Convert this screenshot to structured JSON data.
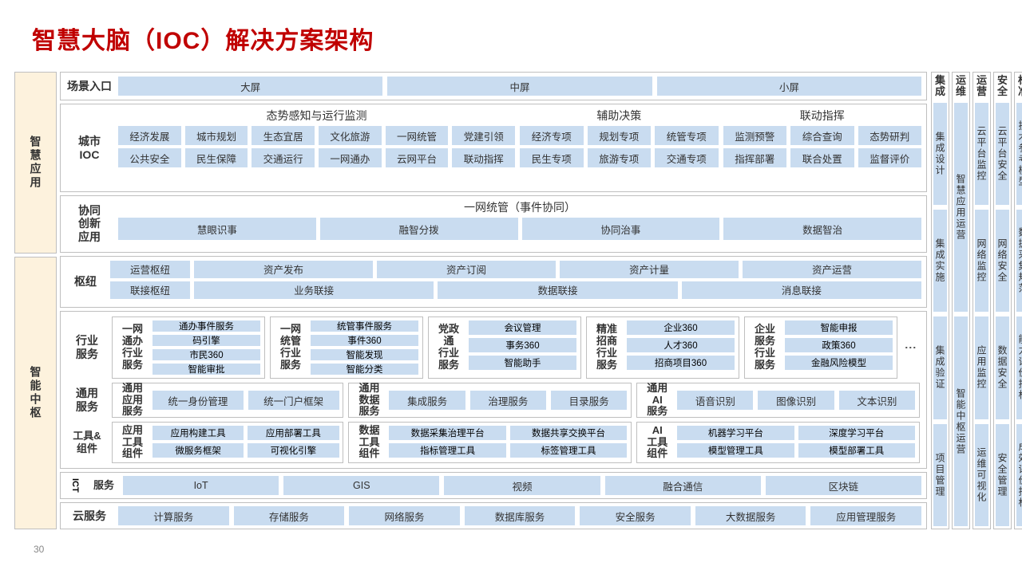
{
  "header": {
    "title": "智慧大脑（IOC）解决方案架构",
    "page": "30"
  },
  "colors": {
    "title": "#c00000",
    "chip_bg": "#c9dcf0",
    "panel_border": "#bfbfbf",
    "left_bg": "#fdf2dd",
    "text": "#333333",
    "page_bg": "#ffffff"
  },
  "left": {
    "app": "智慧应用",
    "center": "智能中枢"
  },
  "scene_entry": {
    "label": "场景入口",
    "items": [
      "大屏",
      "中屏",
      "小屏"
    ]
  },
  "city_ioc": {
    "label": "城市\nIOC",
    "situation": {
      "title": "态势感知与运行监测",
      "r1": [
        "经济发展",
        "城市规划",
        "生态宜居",
        "文化旅游",
        "一网统管",
        "党建引领"
      ],
      "r2": [
        "公共安全",
        "民生保障",
        "交通运行",
        "一网通办",
        "云网平台",
        "联动指挥"
      ]
    },
    "assist": {
      "title": "辅助决策",
      "r1": [
        "经济专项",
        "规划专项",
        "统管专项"
      ],
      "r2": [
        "民生专项",
        "旅游专项",
        "交通专项"
      ]
    },
    "command": {
      "title": "联动指挥",
      "r1": [
        "监测预警",
        "综合查询",
        "态势研判"
      ],
      "r2": [
        "指挥部署",
        "联合处置",
        "监督评价"
      ]
    }
  },
  "collab": {
    "label": "协同\n创新\n应用",
    "title": "一网统管（事件协同）",
    "items": [
      "慧眼识事",
      "融智分拨",
      "协同治事",
      "数据智治"
    ]
  },
  "hub": {
    "label": "枢纽",
    "r1": [
      "运营枢纽",
      "资产发布",
      "资产订阅",
      "资产计量",
      "资产运营"
    ],
    "r2": [
      "联接枢纽",
      "业务联接",
      "数据联接",
      "消息联接"
    ]
  },
  "industry": {
    "label": "行业\n服务",
    "more": "⋮",
    "g1": {
      "label": "一网\n通办\n行业\n服务",
      "i": [
        "通办事件服务",
        "码引擎",
        "市民360",
        "智能审批"
      ]
    },
    "g2": {
      "label": "一网\n统管\n行业\n服务",
      "i": [
        "统管事件服务",
        "事件360",
        "智能发现",
        "智能分类"
      ]
    },
    "g3": {
      "label": "党政\n通\n行业\n服务",
      "i": [
        "会议管理",
        "事务360",
        "智能助手"
      ]
    },
    "g4": {
      "label": "精准\n招商\n行业\n服务",
      "i": [
        "企业360",
        "人才360",
        "招商项目360"
      ]
    },
    "g5": {
      "label": "企业\n服务\n行业\n服务",
      "i": [
        "智能申报",
        "政策360",
        "金融风险模型"
      ]
    }
  },
  "common_svc": {
    "label": "通用\n服务",
    "g1": {
      "label": "通用\n应用\n服务",
      "i": [
        "统一身份管理",
        "统一门户框架"
      ]
    },
    "g2": {
      "label": "通用\n数据\n服务",
      "i": [
        "集成服务",
        "治理服务",
        "目录服务"
      ]
    },
    "g3": {
      "label": "通用\nAI\n服务",
      "i": [
        "语音识别",
        "图像识别",
        "文本识别"
      ]
    }
  },
  "tools": {
    "label": "工具&\n组件",
    "g1": {
      "label": "应用\n工具\n组件",
      "i": [
        "应用构建工具",
        "应用部署工具",
        "微服务框架",
        "可视化引擎"
      ]
    },
    "g2": {
      "label": "数据\n工具\n组件",
      "i": [
        "数据采集治理平台",
        "数据共享交换平台",
        "指标管理工具",
        "标签管理工具"
      ]
    },
    "g3": {
      "label": "AI\n工具\n组件",
      "i": [
        "机器学习平台",
        "深度学习平台",
        "模型管理工具",
        "模型部署工具"
      ]
    }
  },
  "ict": {
    "label": "ICT",
    "label2": "服务",
    "items": [
      "IoT",
      "GIS",
      "视频",
      "融合通信",
      "区块链"
    ]
  },
  "cloud": {
    "label": "云服务",
    "items": [
      "计算服务",
      "存储服务",
      "网络服务",
      "数据库服务",
      "安全服务",
      "大数据服务",
      "应用管理服务"
    ]
  },
  "side": {
    "c1": {
      "title": "集\n成",
      "i": [
        "集成设计",
        "集成实施",
        "集成验证",
        "项目管理"
      ]
    },
    "c2": {
      "title": "运\n维",
      "i": [
        "智慧应用运营",
        "智能中枢运营"
      ]
    },
    "c3": {
      "title": "运\n营",
      "i": [
        "云平台监控",
        "网络监控",
        "应用监控",
        "运维可视化"
      ]
    },
    "c4": {
      "title": "安\n全",
      "i": [
        "云平台安全",
        "网络安全",
        "数据安全",
        "安全管理"
      ]
    },
    "c5": {
      "title": "标\n准",
      "i": [
        "技术参考模型",
        "数据采集规范",
        "能力评价指标",
        "成效评价指标"
      ]
    }
  }
}
